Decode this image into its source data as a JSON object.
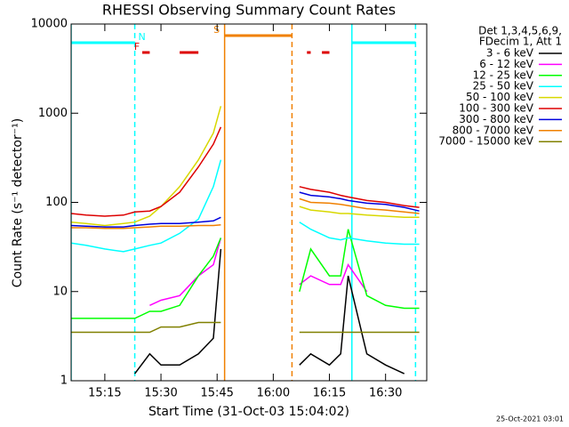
{
  "chart_data": {
    "type": "line",
    "title": "RHESSI Observing Summary Count Rates",
    "xlabel": "Start Time (31-Oct-03 15:04:02)",
    "ylabel": "Count Rate (s⁻¹ detector⁻¹)",
    "legend_header": [
      "Det 1,3,4,5,6,9,",
      "FDecim 1, Att 1"
    ],
    "footer": "25-Oct-2021 03:01",
    "log_y": true,
    "xlim": [
      "15:06",
      "16:41"
    ],
    "xticks": [
      "15:15",
      "15:30",
      "15:45",
      "16:00",
      "16:15",
      "16:30"
    ],
    "ylim": [
      1,
      10000
    ],
    "yticks": [
      1,
      10,
      100,
      1000,
      10000
    ],
    "x": [
      "15:06",
      "15:10",
      "15:15",
      "15:20",
      "15:23",
      "15:27",
      "15:30",
      "15:35",
      "15:40",
      "15:44",
      "15:46",
      "15:47",
      "15:55",
      "16:07",
      "16:10",
      "16:15",
      "16:18",
      "16:20",
      "16:25",
      "16:30",
      "16:35",
      "16:39"
    ],
    "series": [
      {
        "name": "3 - 6 keV",
        "color": "#000000",
        "values": [
          null,
          null,
          null,
          null,
          1.2,
          2,
          1.5,
          1.5,
          2,
          3,
          30,
          null,
          null,
          1.5,
          2,
          1.5,
          2,
          15,
          2,
          1.5,
          1.2,
          null
        ]
      },
      {
        "name": "6 - 12 keV",
        "color": "#ff00ff",
        "values": [
          null,
          null,
          null,
          null,
          null,
          7,
          8,
          9,
          15,
          20,
          40,
          null,
          null,
          12,
          15,
          12,
          12,
          20,
          10,
          null,
          null,
          null
        ]
      },
      {
        "name": "12 - 25 keV",
        "color": "#00ff00",
        "values": [
          5,
          5,
          5,
          5,
          5,
          6,
          6,
          7,
          15,
          25,
          40,
          null,
          null,
          10,
          30,
          15,
          15,
          50,
          9,
          7,
          6.5,
          6.5
        ]
      },
      {
        "name": "25 - 50 keV",
        "color": "#00ffff",
        "values": [
          35,
          33,
          30,
          28,
          30,
          33,
          35,
          45,
          65,
          150,
          300,
          null,
          null,
          60,
          50,
          40,
          38,
          40,
          37,
          35,
          34,
          34
        ]
      },
      {
        "name": "50 - 100 keV",
        "color": "#d8d800",
        "values": [
          60,
          58,
          55,
          58,
          60,
          70,
          90,
          150,
          300,
          600,
          1200,
          null,
          null,
          90,
          82,
          78,
          75,
          75,
          72,
          70,
          68,
          68
        ]
      },
      {
        "name": "100 - 300 keV",
        "color": "#dd0000",
        "values": [
          75,
          72,
          70,
          72,
          78,
          80,
          90,
          130,
          250,
          450,
          700,
          null,
          null,
          150,
          140,
          130,
          120,
          115,
          105,
          100,
          92,
          88
        ]
      },
      {
        "name": "300 - 800 keV",
        "color": "#0000dd",
        "values": [
          55,
          54,
          53,
          53,
          55,
          57,
          58,
          58,
          60,
          62,
          68,
          null,
          null,
          130,
          120,
          115,
          110,
          105,
          98,
          95,
          88,
          80
        ]
      },
      {
        "name": "800 - 7000 keV",
        "color": "#f08000",
        "values": [
          52,
          52,
          51,
          51,
          52,
          53,
          54,
          54,
          55,
          55,
          56,
          null,
          null,
          110,
          100,
          98,
          95,
          92,
          85,
          82,
          78,
          75
        ]
      },
      {
        "name": "7000 - 15000 keV",
        "color": "#808000",
        "values": [
          3.5,
          3.5,
          3.5,
          3.5,
          3.5,
          3.5,
          4,
          4,
          4.5,
          4.5,
          4.5,
          null,
          null,
          3.5,
          3.5,
          3.5,
          3.5,
          3.5,
          3.5,
          3.5,
          3.5,
          3.5
        ]
      }
    ],
    "vlines": [
      {
        "x": "15:06",
        "color": "#00ffff",
        "dashed": false
      },
      {
        "x": "15:23",
        "color": "#00ffff",
        "dashed": true
      },
      {
        "x": "15:47",
        "color": "#f08000",
        "dashed": false
      },
      {
        "x": "16:05",
        "color": "#f08000",
        "dashed": true
      },
      {
        "x": "16:21",
        "color": "#00ffff",
        "dashed": false
      },
      {
        "x": "16:38",
        "color": "#00ffff",
        "dashed": true
      }
    ],
    "flags": [
      {
        "label": "S",
        "color": "#f08000",
        "spans": [
          [
            "15:47",
            "16:05"
          ]
        ]
      },
      {
        "label": "N",
        "color": "#00ffff",
        "spans": [
          [
            "15:06",
            "15:23"
          ],
          [
            "16:21",
            "16:38"
          ]
        ]
      },
      {
        "label": "F",
        "color": "#dd0000",
        "spans": [
          [
            "15:25",
            "15:27"
          ],
          [
            "15:35",
            "15:40"
          ],
          [
            "16:09",
            "16:10"
          ],
          [
            "16:13",
            "16:15"
          ]
        ]
      }
    ]
  }
}
